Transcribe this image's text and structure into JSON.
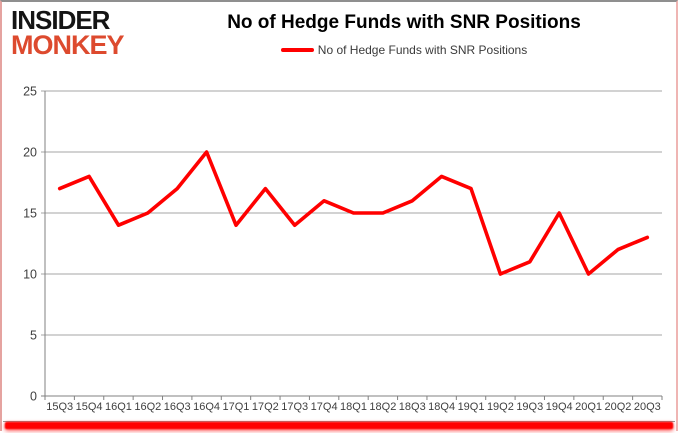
{
  "logo": {
    "line1": "INSIDER",
    "line2": "MONKEY"
  },
  "legend": {
    "label": "No of Hedge Funds with SNR Positions"
  },
  "colors": {
    "series_line": "#ff0000",
    "logo_red": "#dd4a2e",
    "gridline": "#a6a6a6",
    "axis": "#808080",
    "tick_label": "#3f3f3f",
    "bottom_glow": "#ff0000"
  },
  "chart_data": {
    "type": "line",
    "title": "No of Hedge Funds with SNR Positions",
    "xlabel": "",
    "ylabel": "",
    "ylim": [
      0,
      25
    ],
    "y_ticks": [
      0,
      5,
      10,
      15,
      20,
      25
    ],
    "grid": "horizontal",
    "legend_position": "top",
    "categories": [
      "15Q3",
      "15Q4",
      "16Q1",
      "16Q2",
      "16Q3",
      "16Q4",
      "17Q1",
      "17Q2",
      "17Q3",
      "17Q4",
      "18Q1",
      "18Q2",
      "18Q3",
      "18Q4",
      "19Q1",
      "19Q2",
      "19Q3",
      "19Q4",
      "20Q1",
      "20Q2",
      "20Q3"
    ],
    "series": [
      {
        "name": "No of Hedge Funds with SNR Positions",
        "color": "#ff0000",
        "values": [
          17,
          18,
          14,
          15,
          17,
          20,
          14,
          17,
          14,
          16,
          15,
          15,
          16,
          18,
          17,
          10,
          11,
          15,
          10,
          12,
          13
        ]
      }
    ]
  }
}
